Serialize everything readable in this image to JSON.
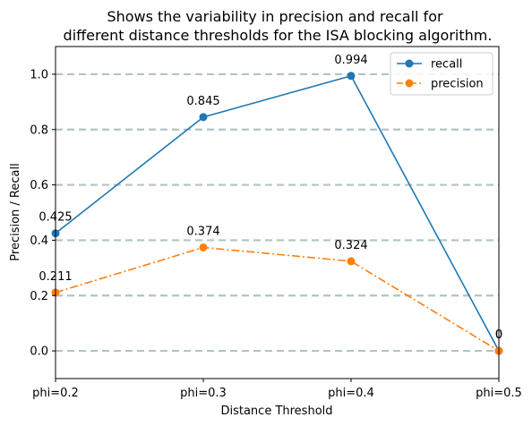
{
  "chart_data": {
    "type": "line",
    "title_lines": [
      "Shows the variability in precision and recall for",
      "different distance thresholds for the ISA blocking algorithm."
    ],
    "xlabel": "Distance Threshold",
    "ylabel": "Precision / Recall",
    "categories": [
      "phi=0.2",
      "phi=0.3",
      "phi=0.4",
      "phi=0.5"
    ],
    "yticks": [
      "0.0",
      "0.2",
      "0.4",
      "0.6",
      "0.8",
      "1.0"
    ],
    "ylim": [
      -0.1,
      1.1
    ],
    "grid": "horizontal dashed",
    "legend_position": "top-right",
    "series": [
      {
        "name": "recall",
        "values": [
          0.425,
          0.845,
          0.994,
          0
        ],
        "labels": [
          "0.425",
          "0.845",
          "0.994",
          "0"
        ],
        "color": "#1f77b4",
        "line_style": "solid",
        "marker": "circle"
      },
      {
        "name": "precision",
        "values": [
          0.211,
          0.374,
          0.324,
          0
        ],
        "labels": [
          "0.211",
          "0.374",
          "0.324",
          "0"
        ],
        "color": "#ff7f0e",
        "line_style": "dashdot",
        "marker": "circle"
      }
    ],
    "grid_color": "#b0c4c4"
  }
}
